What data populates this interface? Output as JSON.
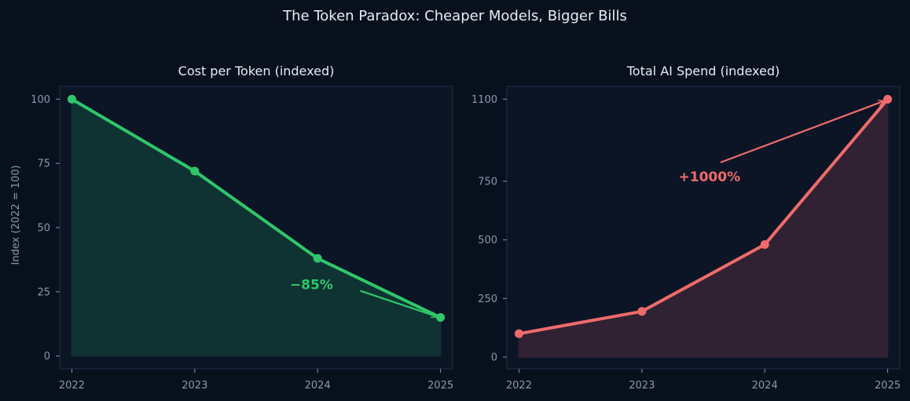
{
  "figure": {
    "title": "The Token Paradox: Cheaper Models, Bigger Bills"
  },
  "chart_data": [
    {
      "type": "area",
      "title": "Cost per Token (indexed)",
      "xlabel": "",
      "ylabel": "Index (2022 = 100)",
      "x": [
        2022,
        2023,
        2024,
        2025
      ],
      "x_tick_labels": [
        "2022",
        "2023",
        "2024",
        "2025"
      ],
      "y_ticks": [
        0,
        25,
        50,
        75,
        100
      ],
      "y_tick_labels": [
        "0",
        "25",
        "50",
        "75",
        "100"
      ],
      "ylim": [
        -5,
        105
      ],
      "series": [
        {
          "values": [
            100,
            72,
            38,
            15
          ],
          "color": "#2ec76a",
          "fill": "#0f3332"
        }
      ],
      "annotation": {
        "text": "−85%",
        "target_x": 2025,
        "target_y": 15,
        "text_x": 2023.95,
        "text_y": 26,
        "color": "#2ec76a"
      },
      "grid": false
    },
    {
      "type": "area",
      "title": "Total AI Spend (indexed)",
      "xlabel": "",
      "ylabel": "",
      "x": [
        2022,
        2023,
        2024,
        2025
      ],
      "x_tick_labels": [
        "2022",
        "2023",
        "2024",
        "2025"
      ],
      "y_ticks": [
        0,
        250,
        500,
        750,
        1100
      ],
      "y_tick_labels": [
        "0",
        "250",
        "500",
        "750",
        "1100"
      ],
      "ylim": [
        -50,
        1155
      ],
      "series": [
        {
          "values": [
            100,
            195,
            480,
            1100
          ],
          "color": "#ef6b6b",
          "fill": "#302232"
        }
      ],
      "annotation": {
        "text": "+1000%",
        "target_x": 2025,
        "target_y": 1100,
        "text_x": 2023.55,
        "text_y": 750,
        "color": "#ef6b6b"
      },
      "grid": false
    }
  ]
}
